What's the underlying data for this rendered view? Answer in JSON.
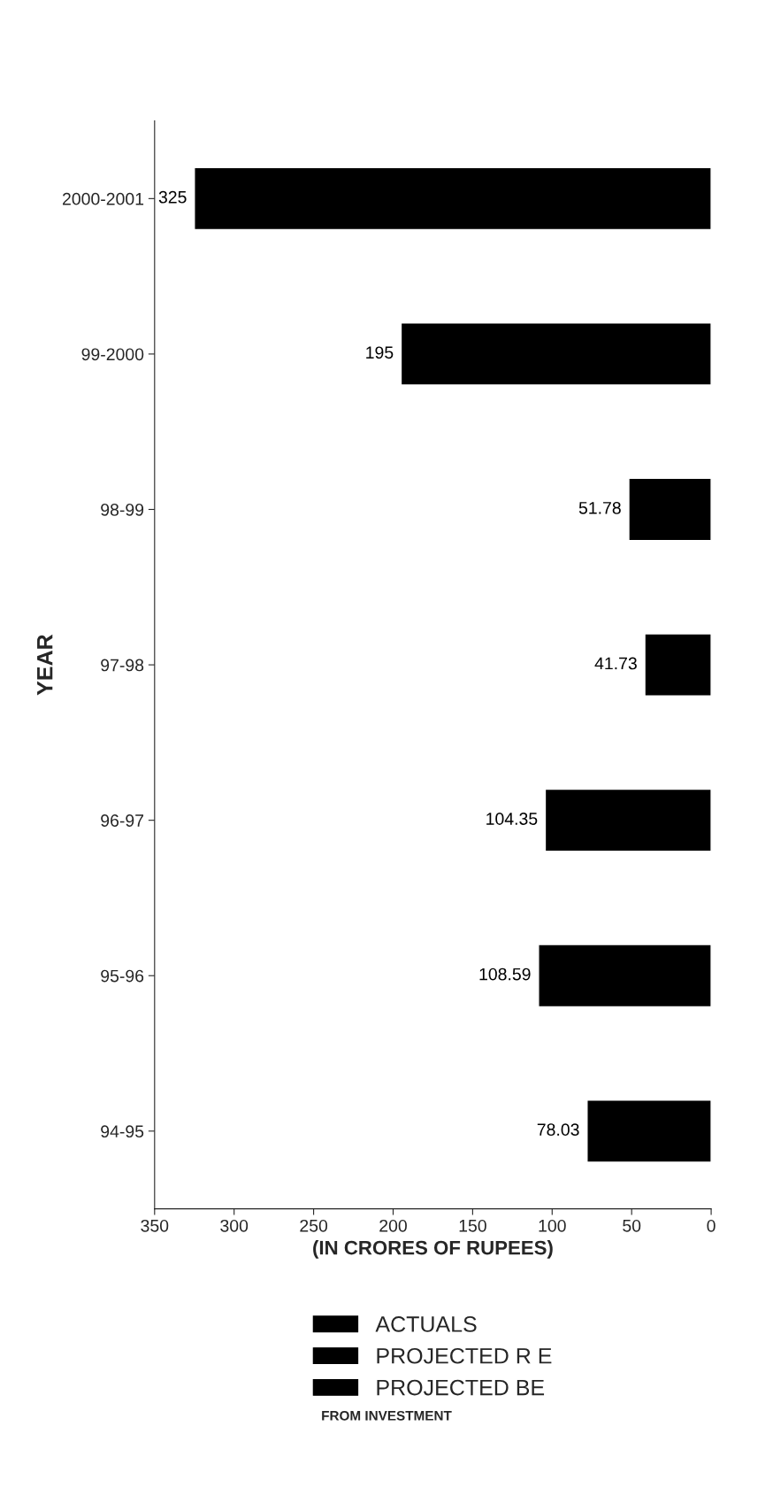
{
  "chart_data": {
    "type": "bar",
    "orientation": "horizontal",
    "xlabel": "(IN CRORES OF RUPEES)",
    "ylabel": "YEAR",
    "categories": [
      "2000-2001",
      "99-2000",
      "98-99",
      "97-98",
      "96-97",
      "95-96",
      "94-95"
    ],
    "series": [
      {
        "name": "ACTUALS",
        "color": "#000000",
        "values": [
          null,
          null,
          51.78,
          41.73,
          104.35,
          108.59,
          78.03
        ]
      },
      {
        "name": "PROJECTED R E",
        "color": "#000000",
        "values": [
          null,
          195,
          null,
          null,
          null,
          null,
          null
        ]
      },
      {
        "name": "PROJECTED BE",
        "color": "#000000",
        "values": [
          325,
          null,
          null,
          null,
          null,
          null,
          null
        ]
      }
    ],
    "xlim": [
      350,
      0
    ],
    "xticks": [
      0,
      50,
      100,
      150,
      200,
      250,
      300,
      350
    ],
    "data_labels": true,
    "grid": false,
    "legend": "bottom",
    "annotations": [
      "FROM INVESTMENT"
    ]
  }
}
